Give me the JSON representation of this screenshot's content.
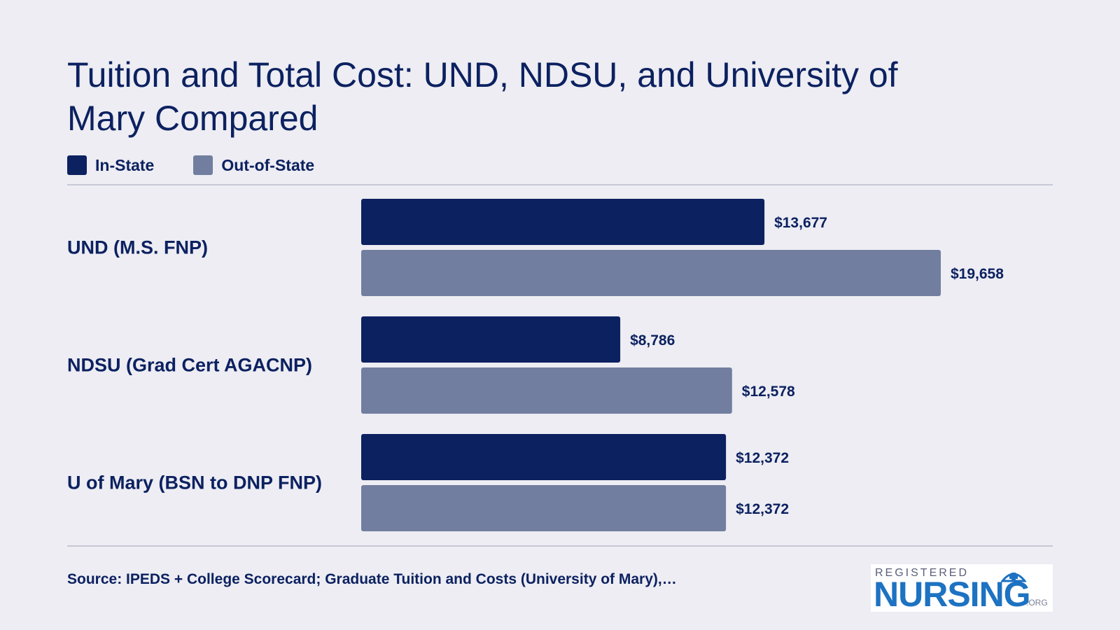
{
  "title": "Tuition and Total Cost: UND, NDSU, and University of Mary Compared",
  "legend": [
    {
      "label": "In-State",
      "color": "#0c2160"
    },
    {
      "label": "Out-of-State",
      "color": "#717e9f"
    }
  ],
  "chart_data": {
    "type": "bar",
    "orientation": "horizontal",
    "categories": [
      "UND (M.S. FNP)",
      "NDSU (Grad Cert AGACNP)",
      "U of Mary (BSN to DNP FNP)"
    ],
    "series": [
      {
        "name": "In-State",
        "color": "#0c2160",
        "values": [
          13677,
          8786,
          12372
        ],
        "labels": [
          "$13,677",
          "$8,786",
          "$12,372"
        ]
      },
      {
        "name": "Out-of-State",
        "color": "#717e9f",
        "values": [
          19658,
          12578,
          12372
        ],
        "labels": [
          "$19,658",
          "$12,578",
          "$12,372"
        ]
      }
    ],
    "xlim": [
      0,
      19658
    ],
    "grid": false,
    "legend_position": "top-left"
  },
  "source": "Source: IPEDS + College Scorecard; Graduate Tuition and Costs (University of Mary),…",
  "logo": {
    "top_text": "REGISTERED",
    "main_text": "NURSING",
    "suffix": ".ORG"
  }
}
